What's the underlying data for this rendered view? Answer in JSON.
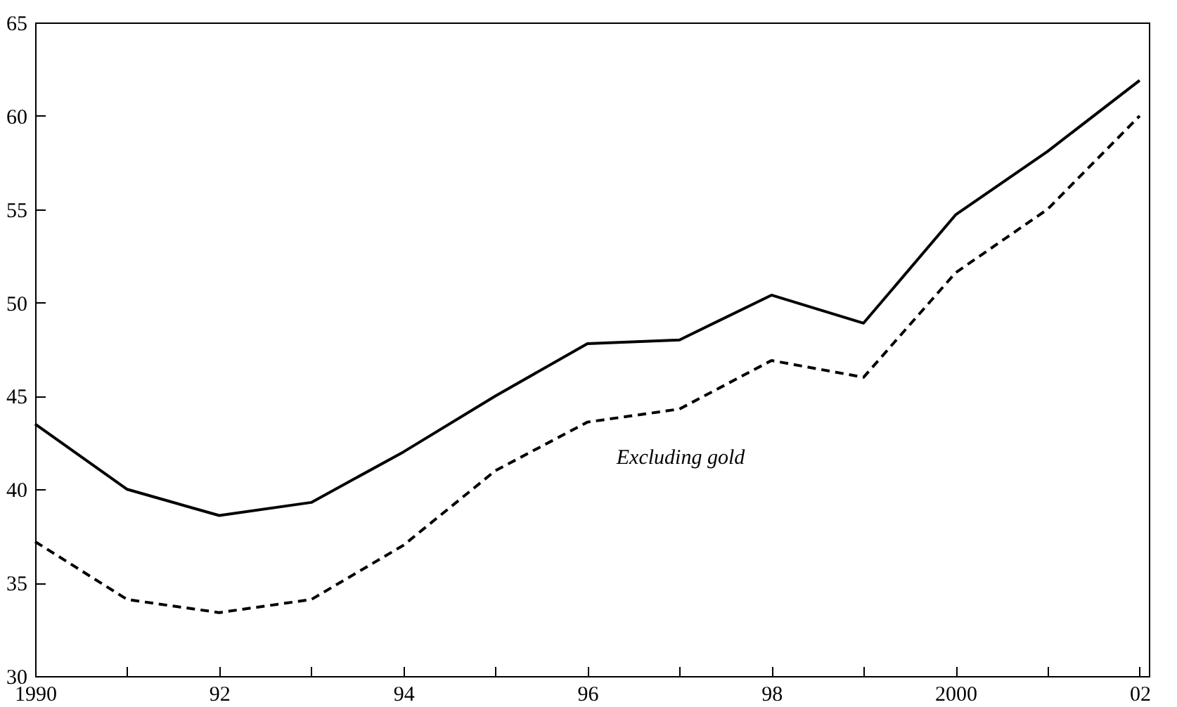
{
  "chart_data": {
    "type": "line",
    "x": [
      1990,
      1991,
      1992,
      1993,
      1994,
      1995,
      1996,
      1997,
      1998,
      1999,
      2000,
      2001,
      2002
    ],
    "series": [
      {
        "color": "#000000",
        "line_style": "solid",
        "values": [
          43.5,
          40.0,
          38.6,
          39.3,
          42.0,
          45.0,
          47.8,
          48.0,
          50.4,
          48.9,
          54.7,
          58.1,
          61.9
        ]
      },
      {
        "color": "#000000",
        "line_style": "dashed",
        "values": [
          37.2,
          34.1,
          33.4,
          34.1,
          37.0,
          41.0,
          43.6,
          44.3,
          46.9,
          46.0,
          51.6,
          55.0,
          60.0
        ]
      }
    ],
    "annotations": [
      "Excluding gold"
    ],
    "xlim": [
      1990,
      2002.1
    ],
    "xticks": [
      {
        "value": 1990,
        "label": "1990"
      },
      {
        "value": 1991,
        "label": null
      },
      {
        "value": 1992,
        "label": "92"
      },
      {
        "value": 1993,
        "label": null
      },
      {
        "value": 1994,
        "label": "94"
      },
      {
        "value": 1995,
        "label": null
      },
      {
        "value": 1996,
        "label": "96"
      },
      {
        "value": 1997,
        "label": null
      },
      {
        "value": 1998,
        "label": "98"
      },
      {
        "value": 1999,
        "label": null
      },
      {
        "value": 2000,
        "label": "2000"
      },
      {
        "value": 2001,
        "label": null
      },
      {
        "value": 2002,
        "label": "02"
      }
    ],
    "ylim": [
      30,
      65
    ],
    "yticks": [
      30,
      35,
      40,
      45,
      50,
      55,
      60,
      65
    ],
    "grid": false,
    "marker": "none"
  }
}
